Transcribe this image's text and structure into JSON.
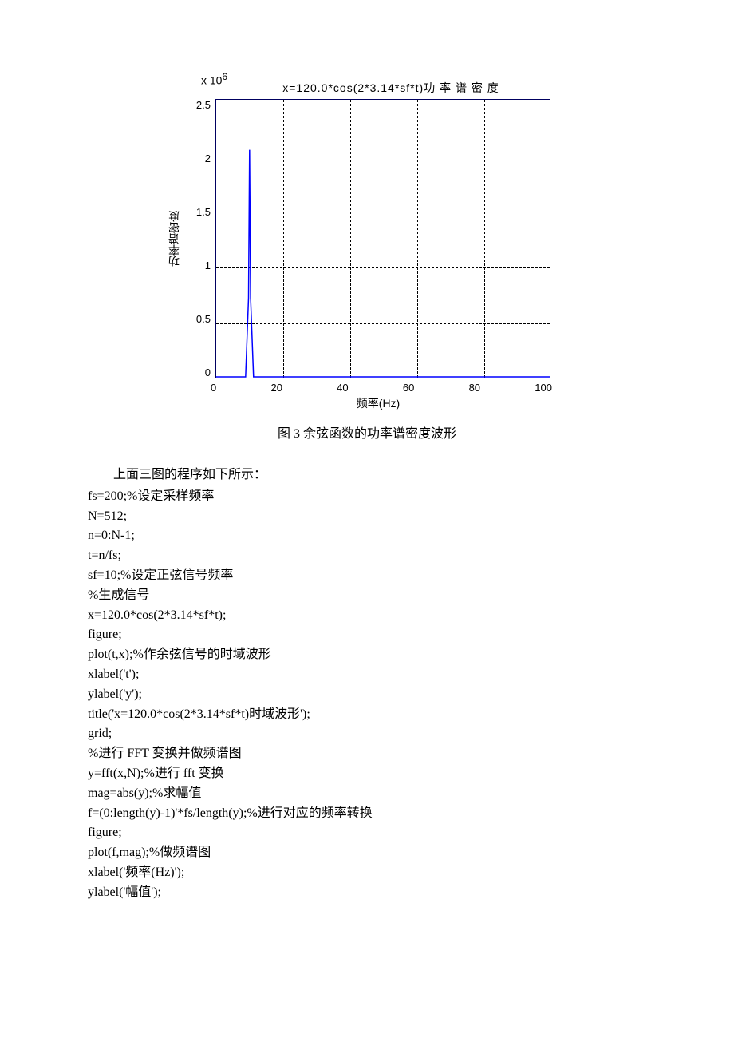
{
  "chart": {
    "type": "line",
    "title": "x=120.0*cos(2*3.14*sf*t)功 率 谱 密 度",
    "exponent_label": "x 10",
    "exponent_sup": "6",
    "xlabel": "频率(Hz)",
    "ylabel": "功率谱密度",
    "xlim": [
      0,
      100
    ],
    "ylim": [
      0,
      2.5
    ],
    "xticks": [
      "0",
      "20",
      "40",
      "60",
      "80",
      "100"
    ],
    "yticks": [
      "2.5",
      "2",
      "1.5",
      "1",
      "0.5",
      "0"
    ],
    "grid_color": "#000000",
    "border_color": "#000060",
    "line_color": "#0000ff",
    "background_color": "#ffffff",
    "peak_x": 10,
    "peak_y": 2.05,
    "peak_base_half_width": 1.2
  },
  "caption": "图 3  余弦函数的功率谱密度波形",
  "intro": "上面三图的程序如下所示：",
  "code": {
    "l1": "fs=200;%设定采样频率",
    "l2": "N=512;",
    "l3": "n=0:N-1;",
    "l4": "t=n/fs;",
    "l5": "sf=10;%设定正弦信号频率",
    "l6": "%生成信号",
    "l7": "x=120.0*cos(2*3.14*sf*t);",
    "l8": "figure;",
    "l9": "plot(t,x);%作余弦信号的时域波形",
    "l10": "xlabel('t');",
    "l11": "ylabel('y');",
    "l12": "title('x=120.0*cos(2*3.14*sf*t)时域波形');",
    "l13": "grid;",
    "l14": "%进行 FFT 变换并做频谱图",
    "l15": "y=fft(x,N);%进行 fft 变换",
    "l16": "mag=abs(y);%求幅值",
    "l17": "f=(0:length(y)-1)'*fs/length(y);%进行对应的频率转换",
    "l18": "figure;",
    "l19": "plot(f,mag);%做频谱图",
    "l20": "xlabel('频率(Hz)');",
    "l21": "ylabel('幅值');"
  }
}
